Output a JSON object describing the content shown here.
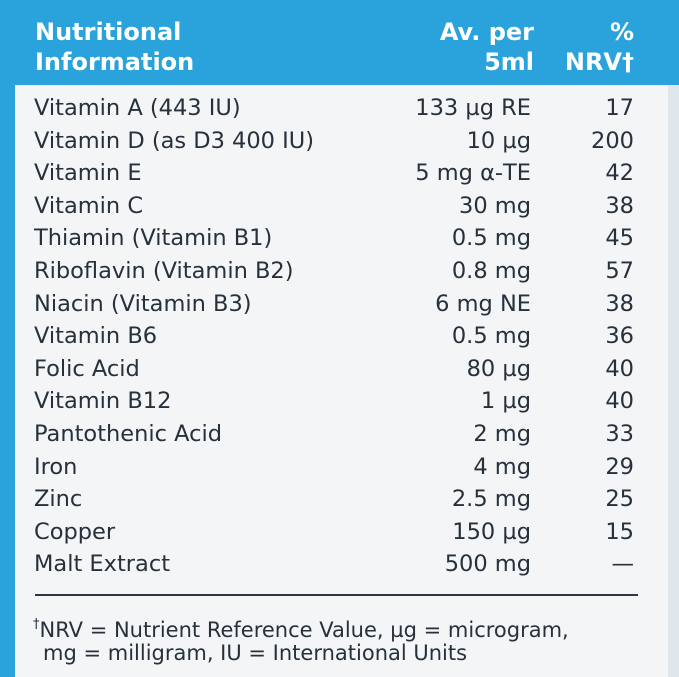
{
  "header": {
    "nutrient": [
      "Nutritional",
      "Information"
    ],
    "amount": [
      "Av. per",
      "5ml"
    ],
    "nrv": [
      "%",
      "NRV†"
    ]
  },
  "table": {
    "rows": [
      [
        "Vitamin A (443 IU)",
        "133 µg RE",
        "17"
      ],
      [
        "Vitamin D (as D3 400 IU)",
        "10 µg",
        "200"
      ],
      [
        "Vitamin E",
        "5 mg α-TE",
        "42"
      ],
      [
        "Vitamin C",
        "30 mg",
        "38"
      ],
      [
        "Thiamin (Vitamin B1)",
        "0.5 mg",
        "45"
      ],
      [
        "Riboflavin (Vitamin B2)",
        "0.8 mg",
        "57"
      ],
      [
        "Niacin (Vitamin B3)",
        "6 mg NE",
        "38"
      ],
      [
        "Vitamin B6",
        "0.5 mg",
        "36"
      ],
      [
        "Folic Acid",
        "80 µg",
        "40"
      ],
      [
        "Vitamin B12",
        "1 µg",
        "40"
      ],
      [
        "Pantothenic Acid",
        "2 mg",
        "33"
      ],
      [
        "Iron",
        "4 mg",
        "29"
      ],
      [
        "Zinc",
        "2.5 mg",
        "25"
      ],
      [
        "Copper",
        "150 µg",
        "15"
      ],
      [
        "Malt Extract",
        "500 mg",
        "—"
      ]
    ]
  },
  "footnote": {
    "mark": "†",
    "lines": [
      "NRV = Nutrient Reference Value, µg = microgram,",
      "mg = milligram, IU = International Units"
    ]
  }
}
